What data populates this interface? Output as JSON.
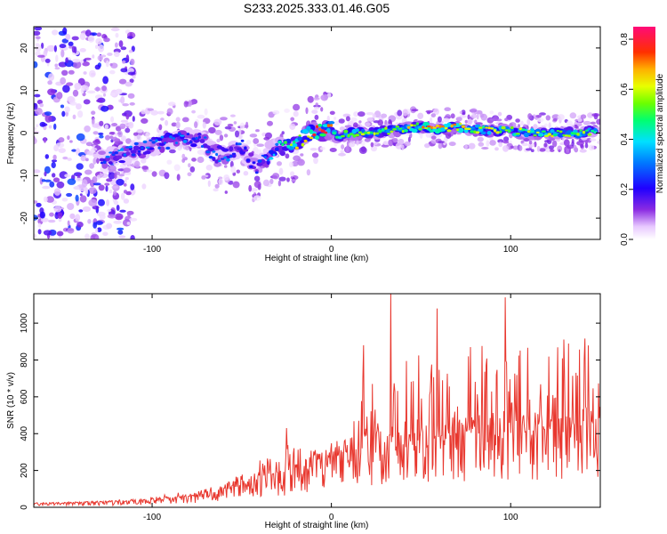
{
  "figure_title": "S233.2025.333.01.46.G05",
  "chart_data": [
    {
      "type": "heatmap",
      "title": "",
      "xlabel": "Height of straight line (km)",
      "ylabel": "Frequency (Hz)",
      "xlim": [
        -166,
        150
      ],
      "ylim": [
        -25,
        25
      ],
      "xticks": [
        -100,
        0,
        100
      ],
      "yticks": [
        -20,
        -10,
        0,
        10,
        20
      ],
      "colorbar": {
        "label": "Normalized spectral amplitude",
        "range": [
          0,
          0.85
        ],
        "ticks": [
          "0.0",
          "0.2",
          "0.4",
          "0.6",
          "0.8"
        ],
        "tick_values": [
          0.0,
          0.2,
          0.4,
          0.6,
          0.8
        ]
      },
      "ridge": {
        "x": [
          -128,
          -115,
          -100,
          -90,
          -80,
          -72,
          -65,
          -58,
          -50,
          -44,
          -40,
          -35,
          -30,
          -25,
          -20,
          -15,
          -10,
          -5,
          0,
          3,
          10,
          20,
          30,
          40,
          50,
          60,
          70,
          80,
          90,
          100,
          110,
          120,
          130,
          140,
          148
        ],
        "freq": [
          -6,
          -5,
          -3,
          -2,
          -1,
          -2,
          -5,
          -5,
          -3,
          -7,
          -8,
          -5,
          -3,
          -3,
          -2,
          -1,
          0,
          0.5,
          1,
          -1,
          0,
          0,
          0.5,
          1,
          1.5,
          1,
          1.5,
          1,
          0.5,
          0.5,
          0,
          0,
          0,
          0,
          0.5
        ],
        "amp": [
          0.3,
          0.3,
          0.3,
          0.35,
          0.3,
          0.3,
          0.35,
          0.3,
          0.3,
          0.25,
          0.25,
          0.35,
          0.4,
          0.5,
          0.6,
          0.65,
          0.75,
          0.8,
          0.65,
          0.5,
          0.6,
          0.55,
          0.55,
          0.6,
          0.65,
          0.7,
          0.65,
          0.6,
          0.6,
          0.55,
          0.55,
          0.6,
          0.55,
          0.55,
          0.5
        ]
      },
      "noise_region_x": [
        -166,
        -118
      ]
    },
    {
      "type": "line",
      "title": "",
      "xlabel": "Height of straight line (km)",
      "ylabel": "SNR (10 * v/v)",
      "xlim": [
        -166,
        150
      ],
      "ylim": [
        0,
        1160
      ],
      "xticks": [
        -100,
        0,
        100
      ],
      "yticks": [
        0,
        200,
        400,
        600,
        800,
        1000
      ],
      "series": [
        {
          "name": "SNR",
          "color": "#e8372e",
          "envelope": {
            "x": [
              -166,
              -140,
              -120,
              -100,
              -80,
              -60,
              -50,
              -40,
              -30,
              -20,
              -10,
              0,
              10,
              18,
              25,
              40,
              60,
              80,
              100,
              120,
              150
            ],
            "base": [
              20,
              25,
              30,
              40,
              60,
              90,
              120,
              150,
              170,
              200,
              240,
              270,
              300,
              320,
              340,
              360,
              380,
              400,
              400,
              420,
              450
            ],
            "peak": [
              25,
              30,
              40,
              60,
              90,
              120,
              190,
              260,
              340,
              340,
              330,
              360,
              400,
              720,
              780,
              850,
              860,
              880,
              900,
              900,
              950
            ]
          },
          "highlights": [
            {
              "x": 33,
              "y": 1160
            },
            {
              "x": 97,
              "y": 1140
            },
            {
              "x": 59,
              "y": 1080
            },
            {
              "x": 18,
              "y": 880
            },
            {
              "x": -25,
              "y": 430
            }
          ]
        }
      ]
    }
  ]
}
